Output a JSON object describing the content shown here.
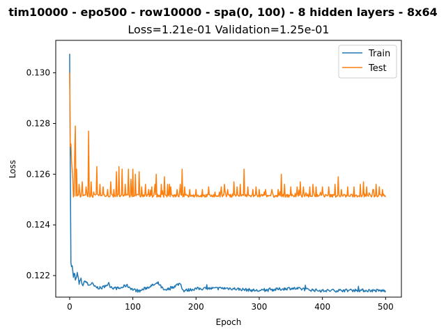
{
  "chart_data": {
    "type": "line",
    "title": "tim10000 - epo500 - row10000 - spa(0, 100) - 8 hidden layers - 8x64",
    "subtitle": "Loss=1.21e-01 Validation=1.25e-01",
    "xlabel": "Epoch",
    "ylabel": "Loss",
    "xlim": [
      -22,
      525
    ],
    "ylim": [
      0.12115,
      0.13128
    ],
    "xticks": [
      0,
      100,
      200,
      300,
      400,
      500
    ],
    "yticks": [
      0.122,
      0.124,
      0.126,
      0.128,
      0.13
    ],
    "ytick_labels": [
      "0.122",
      "0.124",
      "0.126",
      "0.128",
      "0.130"
    ],
    "grid": false,
    "legend_position": "top-right",
    "series": [
      {
        "name": "Train",
        "color": "#1f77b4",
        "start": 0.13075,
        "points": [
          [
            0,
            0.13075
          ],
          [
            1,
            0.1264
          ],
          [
            2,
            0.1225
          ],
          [
            3,
            0.12235
          ],
          [
            4,
            0.12245
          ],
          [
            5,
            0.1222
          ],
          [
            6,
            0.1219
          ],
          [
            7,
            0.1221
          ],
          [
            8,
            0.12205
          ],
          [
            9,
            0.1218
          ],
          [
            10,
            0.12185
          ],
          [
            12,
            0.1221
          ],
          [
            15,
            0.1217
          ],
          [
            18,
            0.12185
          ],
          [
            20,
            0.1216
          ],
          [
            25,
            0.1218
          ],
          [
            30,
            0.1216
          ],
          [
            35,
            0.1217
          ],
          [
            40,
            0.12155
          ],
          [
            50,
            0.1215
          ],
          [
            60,
            0.12165
          ],
          [
            70,
            0.1215
          ],
          [
            80,
            0.1215
          ],
          [
            90,
            0.12162
          ],
          [
            100,
            0.12145
          ],
          [
            110,
            0.12138
          ],
          [
            120,
            0.1215
          ],
          [
            140,
            0.1217
          ],
          [
            150,
            0.1214
          ],
          [
            160,
            0.1215
          ],
          [
            175,
            0.1217
          ],
          [
            180,
            0.1214
          ],
          [
            200,
            0.12148
          ],
          [
            250,
            0.1215
          ],
          [
            300,
            0.1214
          ],
          [
            350,
            0.1215
          ],
          [
            400,
            0.1214
          ],
          [
            450,
            0.12142
          ],
          [
            500,
            0.1214
          ]
        ],
        "noise": 6e-05,
        "final": 0.1214
      },
      {
        "name": "Test",
        "color": "#ff7f0e",
        "start": 0.13,
        "base": 0.12515,
        "noise": 6e-05,
        "final": 0.1251,
        "spikes": [
          [
            1,
            0.1271
          ],
          [
            2,
            0.1272
          ],
          [
            3,
            0.1265
          ],
          [
            4,
            0.1262
          ],
          [
            5,
            0.1258
          ],
          [
            8,
            0.1268
          ],
          [
            9,
            0.1279
          ],
          [
            11,
            0.1262
          ],
          [
            15,
            0.1256
          ],
          [
            20,
            0.1257
          ],
          [
            26,
            0.1255
          ],
          [
            30,
            0.1277
          ],
          [
            34,
            0.1257
          ],
          [
            38,
            0.1253
          ],
          [
            43,
            0.1263
          ],
          [
            48,
            0.1256
          ],
          [
            53,
            0.1255
          ],
          [
            60,
            0.1254
          ],
          [
            65,
            0.1257
          ],
          [
            70,
            0.1254
          ],
          [
            74,
            0.1261
          ],
          [
            78,
            0.1263
          ],
          [
            83,
            0.1262
          ],
          [
            88,
            0.1256
          ],
          [
            93,
            0.1262
          ],
          [
            97,
            0.1258
          ],
          [
            100,
            0.1262
          ],
          [
            104,
            0.126
          ],
          [
            110,
            0.1261
          ],
          [
            114,
            0.1255
          ],
          [
            120,
            0.1256
          ],
          [
            125,
            0.1254
          ],
          [
            130,
            0.1255
          ],
          [
            135,
            0.1256
          ],
          [
            137,
            0.126
          ],
          [
            145,
            0.1256
          ],
          [
            150,
            0.1259
          ],
          [
            155,
            0.1256
          ],
          [
            158,
            0.1256
          ],
          [
            160,
            0.1255
          ],
          [
            170,
            0.1254
          ],
          [
            175,
            0.1256
          ],
          [
            178,
            0.1262
          ],
          [
            182,
            0.1255
          ],
          [
            190,
            0.1254
          ],
          [
            200,
            0.1254
          ],
          [
            210,
            0.1254
          ],
          [
            220,
            0.1255
          ],
          [
            230,
            0.1253
          ],
          [
            240,
            0.1255
          ],
          [
            245,
            0.1256
          ],
          [
            250,
            0.1254
          ],
          [
            260,
            0.1257
          ],
          [
            265,
            0.1255
          ],
          [
            270,
            0.1256
          ],
          [
            276,
            0.1262
          ],
          [
            282,
            0.1255
          ],
          [
            290,
            0.1254
          ],
          [
            295,
            0.1255
          ],
          [
            300,
            0.1254
          ],
          [
            310,
            0.1254
          ],
          [
            320,
            0.1254
          ],
          [
            330,
            0.1254
          ],
          [
            335,
            0.126
          ],
          [
            340,
            0.1256
          ],
          [
            350,
            0.1255
          ],
          [
            360,
            0.1255
          ],
          [
            365,
            0.1257
          ],
          [
            370,
            0.1255
          ],
          [
            380,
            0.1255
          ],
          [
            385,
            0.1256
          ],
          [
            390,
            0.1255
          ],
          [
            400,
            0.1255
          ],
          [
            410,
            0.1255
          ],
          [
            420,
            0.1256
          ],
          [
            425,
            0.1259
          ],
          [
            430,
            0.1254
          ],
          [
            440,
            0.1255
          ],
          [
            450,
            0.1255
          ],
          [
            460,
            0.1256
          ],
          [
            465,
            0.1257
          ],
          [
            470,
            0.1255
          ],
          [
            480,
            0.1254
          ],
          [
            485,
            0.1256
          ],
          [
            490,
            0.1255
          ],
          [
            495,
            0.1254
          ]
        ]
      }
    ]
  }
}
